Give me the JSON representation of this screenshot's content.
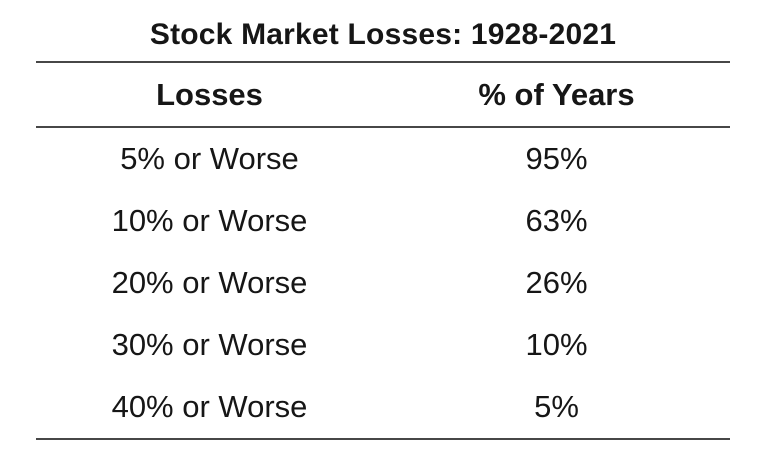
{
  "figure": {
    "title": "Stock Market Losses: 1928-2021",
    "columns": [
      "Losses",
      "% of Years"
    ],
    "rows": [
      {
        "loss": "5% or Worse",
        "years": "95%"
      },
      {
        "loss": "10% or Worse",
        "years": "63%"
      },
      {
        "loss": "20% or Worse",
        "years": "26%"
      },
      {
        "loss": "30% or Worse",
        "years": "10%"
      },
      {
        "loss": "40% or Worse",
        "years": "5%"
      }
    ]
  },
  "chart_data": {
    "type": "table",
    "title": "Stock Market Losses: 1928-2021",
    "columns": [
      "Losses",
      "% of Years"
    ],
    "rows": [
      [
        "5% or Worse",
        "95%"
      ],
      [
        "10% or Worse",
        "63%"
      ],
      [
        "20% or Worse",
        "26%"
      ],
      [
        "30% or Worse",
        "10%"
      ],
      [
        "40% or Worse",
        "5%"
      ]
    ],
    "loss_threshold_pct": [
      5,
      10,
      20,
      30,
      40
    ],
    "pct_of_years": [
      95,
      63,
      26,
      10,
      5
    ]
  },
  "colors": {
    "background": "#ffffff",
    "text": "#161616",
    "rule": "#474747"
  }
}
